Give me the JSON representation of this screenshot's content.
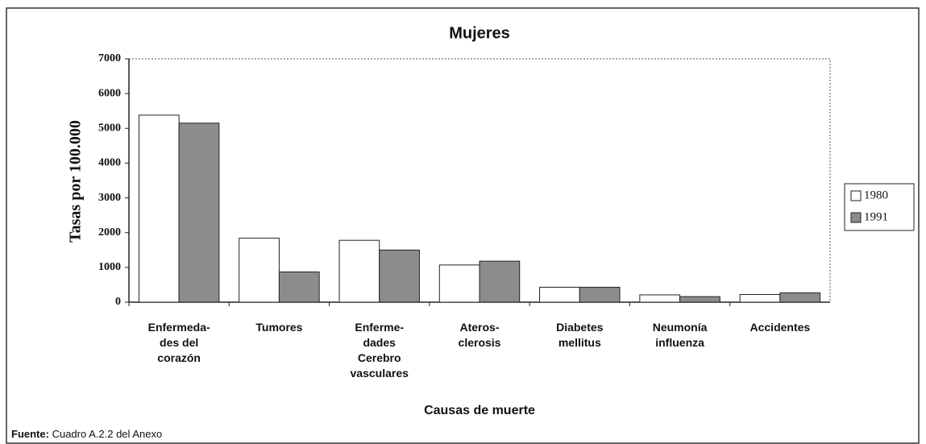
{
  "chart_data": {
    "type": "bar",
    "title": "Mujeres",
    "categories": [
      [
        "Enfermeda-",
        "des del",
        "corazón"
      ],
      [
        "Tumores"
      ],
      [
        "Enferme-",
        "dades",
        "Cerebro",
        "vasculares"
      ],
      [
        "Ateros-",
        "clerosis"
      ],
      [
        "Diabetes",
        "mellitus"
      ],
      [
        "Neumonía",
        "influenza"
      ],
      [
        "Accidentes"
      ]
    ],
    "series": [
      {
        "name": "1980",
        "color": "#ffffff",
        "values": [
          5380,
          1840,
          1780,
          1070,
          430,
          210,
          220
        ]
      },
      {
        "name": "1991",
        "color": "#8c8c8c",
        "values": [
          5150,
          870,
          1500,
          1180,
          430,
          160,
          270
        ]
      }
    ],
    "ylim": [
      0,
      7000
    ],
    "yticks": [
      0,
      1000,
      2000,
      3000,
      4000,
      5000,
      6000,
      7000
    ],
    "grid": false,
    "ylabel": "Tasas por 100.000",
    "xlabel": "Causas de muerte",
    "legend": "right",
    "source_label": "Fuente:",
    "source": "Cuadro A.2.2 del Anexo"
  }
}
